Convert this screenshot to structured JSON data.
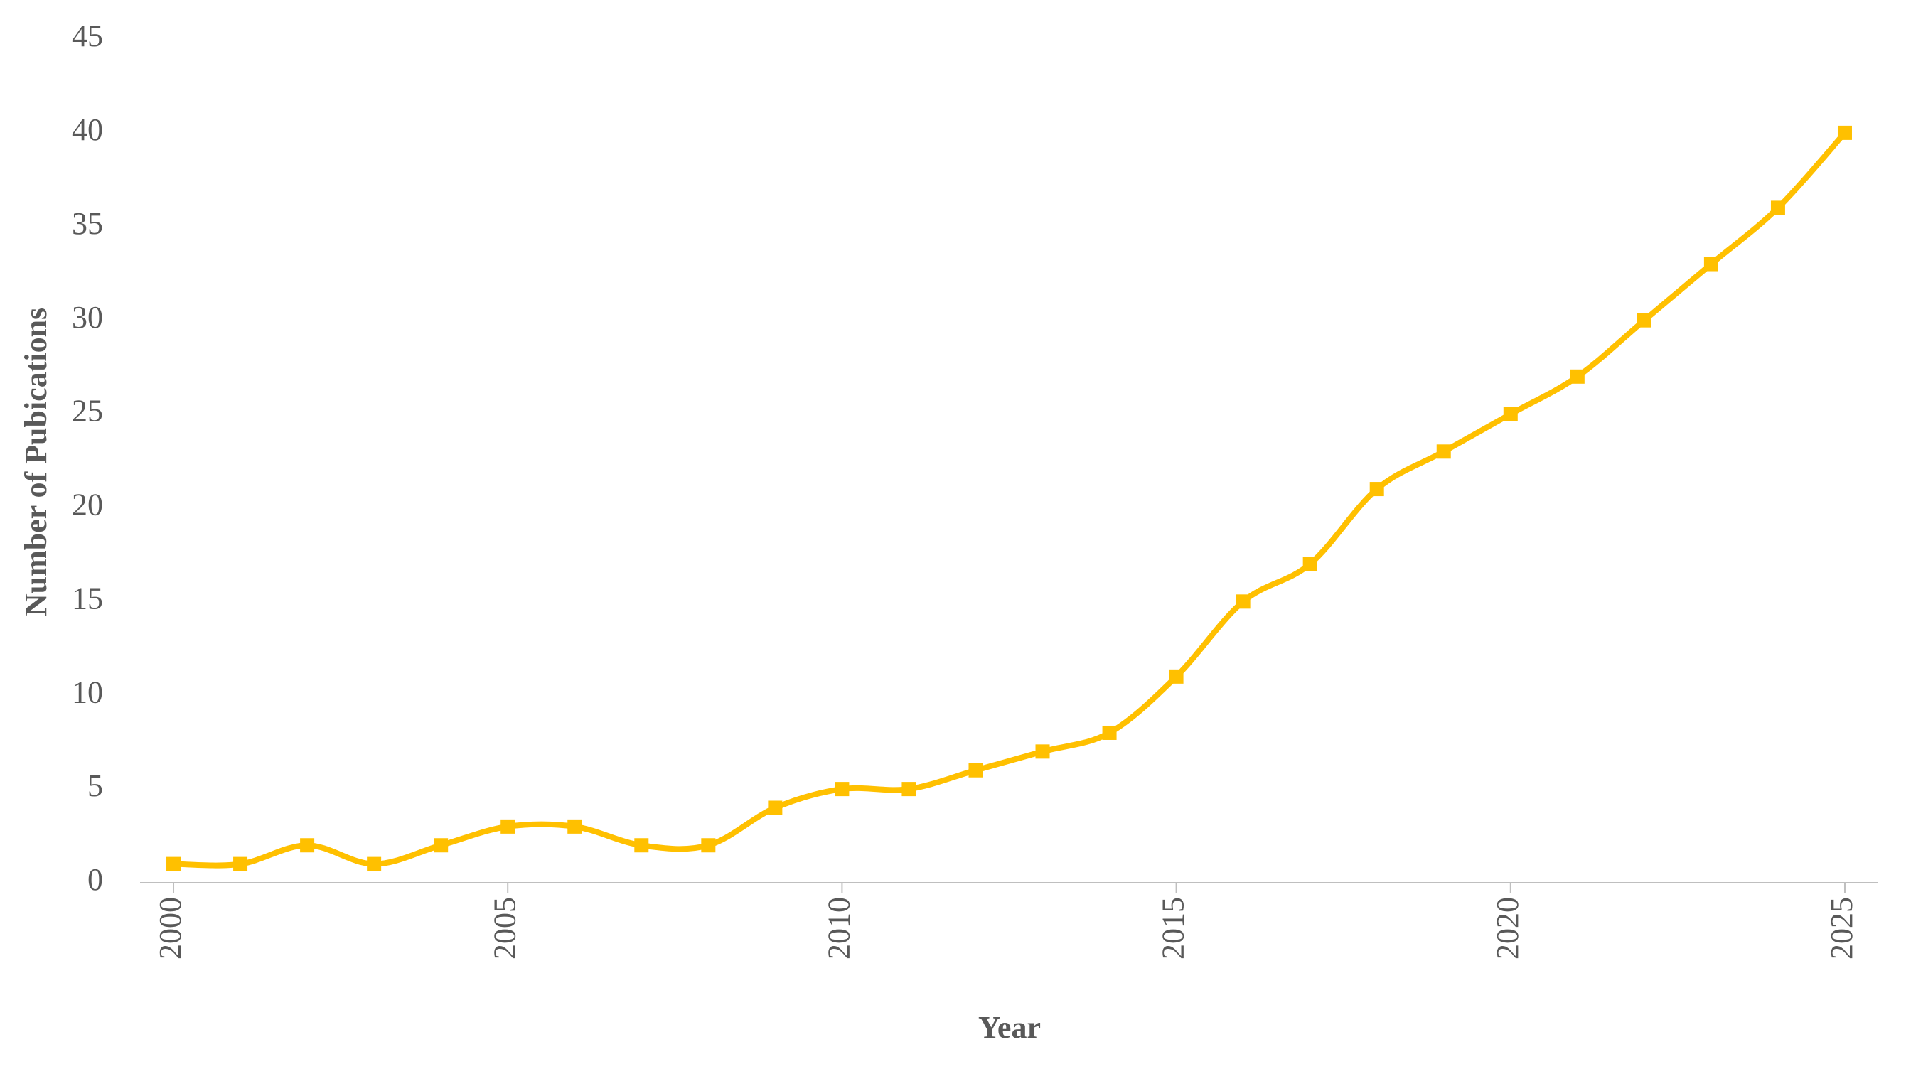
{
  "chart_data": {
    "type": "line",
    "x_label": "Year",
    "y_label": "Number of Pubications",
    "x": [
      2000,
      2001,
      2002,
      2003,
      2004,
      2005,
      2006,
      2007,
      2008,
      2009,
      2010,
      2011,
      2012,
      2013,
      2014,
      2015,
      2016,
      2017,
      2018,
      2019,
      2020,
      2021,
      2022,
      2023,
      2024,
      2025
    ],
    "values": [
      1,
      1,
      2,
      1,
      2,
      3,
      3,
      2,
      2,
      4,
      5,
      5,
      6,
      7,
      8,
      11,
      15,
      17,
      21,
      23,
      25,
      27,
      30,
      33,
      36,
      40
    ],
    "color": "#ffc000",
    "smooth": true,
    "markers": "square",
    "xlim": [
      1999.5,
      2025.5
    ],
    "xticks": [
      2000,
      2005,
      2010,
      2015,
      2020,
      2025
    ],
    "ylim": [
      0,
      45
    ],
    "yticks": [
      0,
      5,
      10,
      15,
      20,
      25,
      30,
      35,
      40,
      45
    ],
    "grid": false
  }
}
